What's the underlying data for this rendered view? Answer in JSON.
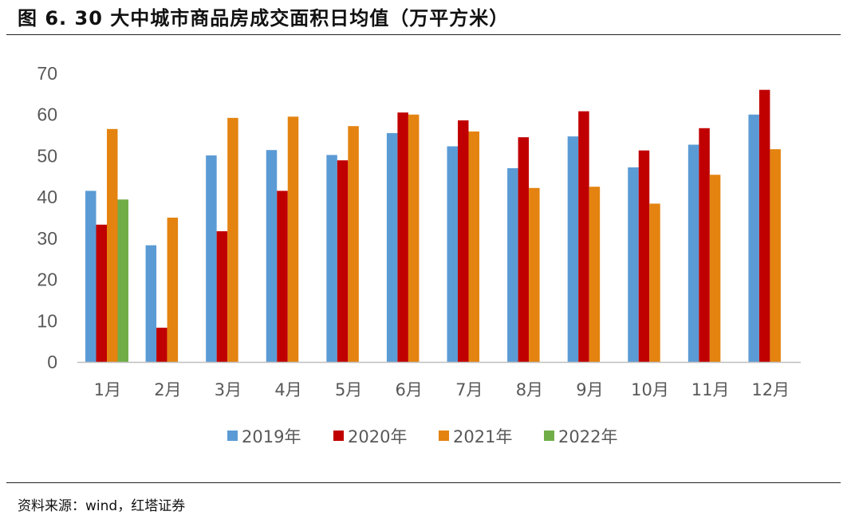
{
  "title": "图 6. 30 大中城市商品房成交面积日均值（万平方米）",
  "source": "资料来源：wind，红塔证券",
  "colors": {
    "2019年": "#5b9bd5",
    "2020年": "#c00000",
    "2021年": "#e48310",
    "2022年": "#70ad47",
    "axis": "#bfbfbf",
    "text": "#595959"
  },
  "chart_data": {
    "type": "bar",
    "title": "大中城市商品房成交面积日均值（万平方米）",
    "xlabel": "",
    "ylabel": "",
    "ylim": [
      0,
      70
    ],
    "yticks": [
      0,
      10,
      20,
      30,
      40,
      50,
      60,
      70
    ],
    "grid": false,
    "legend_position": "bottom",
    "categories": [
      "1月",
      "2月",
      "3月",
      "4月",
      "5月",
      "6月",
      "7月",
      "8月",
      "9月",
      "10月",
      "11月",
      "12月"
    ],
    "series": [
      {
        "name": "2019年",
        "values": [
          41.5,
          28.3,
          50.1,
          51.4,
          50.2,
          55.5,
          52.3,
          47.0,
          54.7,
          47.2,
          52.7,
          60.0
        ]
      },
      {
        "name": "2020年",
        "values": [
          33.3,
          8.3,
          31.7,
          41.5,
          48.9,
          60.5,
          58.6,
          54.5,
          60.8,
          51.3,
          56.7,
          66.0
        ]
      },
      {
        "name": "2021年",
        "values": [
          56.5,
          35.0,
          59.2,
          59.5,
          57.2,
          60.0,
          55.9,
          42.2,
          42.5,
          38.4,
          45.4,
          51.6
        ]
      },
      {
        "name": "2022年",
        "values": [
          39.4,
          null,
          null,
          null,
          null,
          null,
          null,
          null,
          null,
          null,
          null,
          null
        ]
      }
    ]
  }
}
